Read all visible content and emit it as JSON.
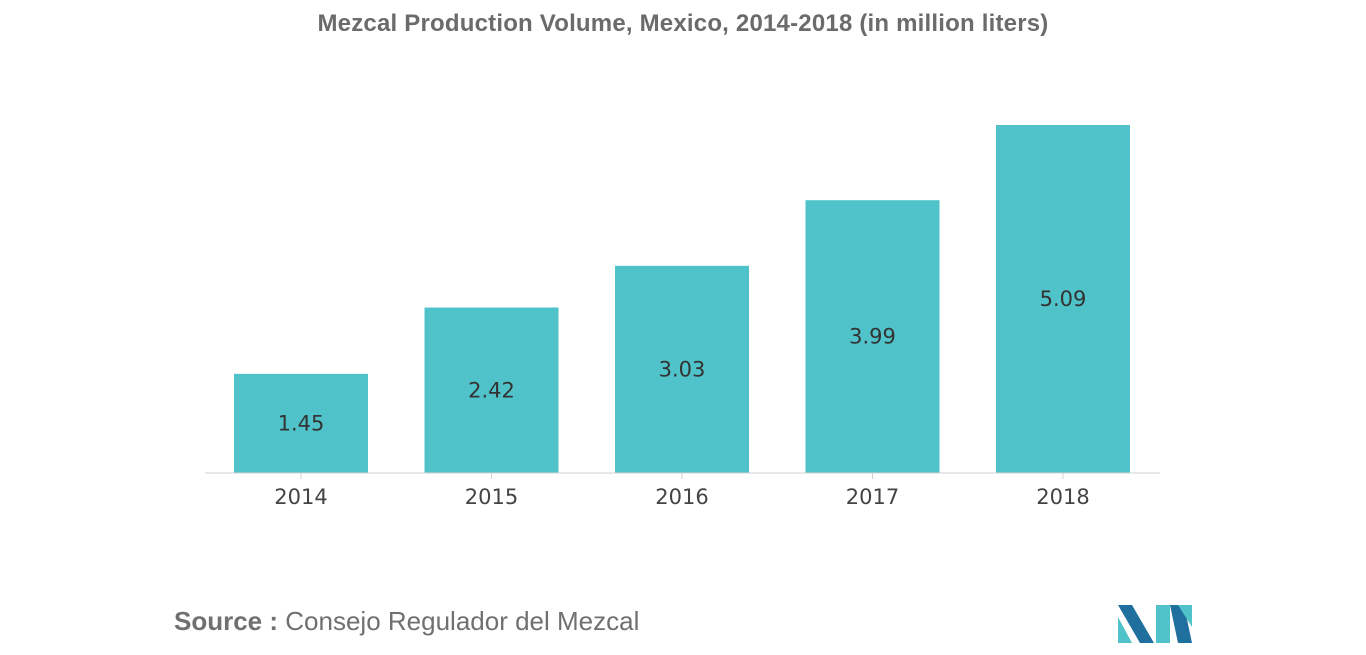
{
  "chart_data": {
    "type": "bar",
    "title": "Mezcal Production Volume, Mexico, 2014-2018 (in million liters)",
    "categories": [
      "2014",
      "2015",
      "2016",
      "2017",
      "2018"
    ],
    "values": [
      1.45,
      2.42,
      3.03,
      3.99,
      5.09
    ],
    "xlabel": "",
    "ylabel": "",
    "ylim": [
      0,
      5.09
    ],
    "grid": false,
    "bar_color": "#4fc3c9",
    "data_labels": [
      "1.45",
      "2.42",
      "3.03",
      "3.99",
      "5.09"
    ]
  },
  "source": {
    "label": "Source :",
    "text": "Consejo Regulador del Mezcal"
  },
  "logo": {
    "icon": "mordor-intelligence-logo",
    "colors": [
      "#1f6f9f",
      "#4fc3c9"
    ]
  }
}
